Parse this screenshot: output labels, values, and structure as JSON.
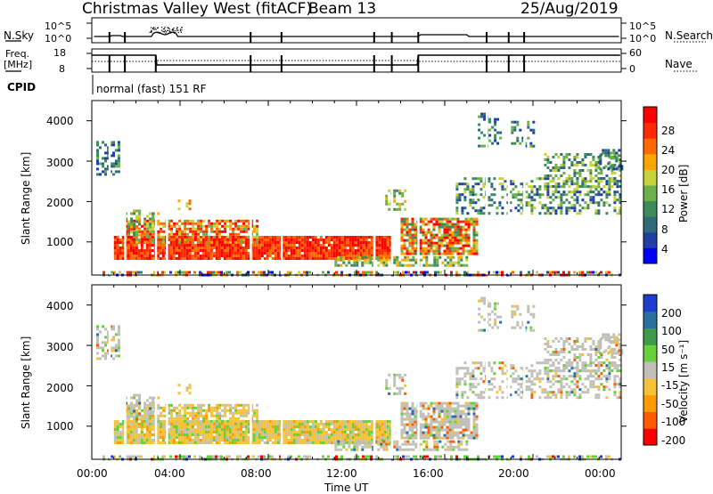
{
  "header": {
    "station": "Christmas Valley West (fitACF)",
    "beam": "Beam 13",
    "date": "25/Aug/2019"
  },
  "noise_panel": {
    "left_label": "N.Sky",
    "right_label": "N.Search",
    "ticks_left": [
      "10^5",
      "10^0"
    ],
    "ticks_right": [
      "10^5",
      "10^0"
    ]
  },
  "freq_panel": {
    "left_label_line1": "Freq.",
    "left_label_line2": "[MHz]",
    "right_label": "Nave",
    "ticks_left": [
      "18",
      "8"
    ],
    "ticks_right": [
      "60",
      "0"
    ]
  },
  "cpid": {
    "label": "CPID",
    "mode": "normal (fast) 151 RF"
  },
  "chart_data": [
    {
      "type": "heatmap",
      "title": "",
      "ylabel": "Slant Range [km]",
      "xlabel": "",
      "x_range_hours": [
        0,
        24
      ],
      "ylim": [
        180,
        4500
      ],
      "y_ticks": [
        "1000",
        "2000",
        "3000",
        "4000"
      ],
      "colorbar": {
        "label": "Power [dB]",
        "ticks": [
          "4",
          "8",
          "12",
          "16",
          "20",
          "24",
          "28"
        ],
        "range": [
          0,
          30
        ],
        "colors": [
          "#0000ff",
          "#1f3fa8",
          "#2f6a78",
          "#3d8a5a",
          "#6bb04a",
          "#c8d23a",
          "#ffa500",
          "#ff6a00",
          "#ff2a00",
          "#ff0000"
        ]
      }
    },
    {
      "type": "heatmap",
      "title": "",
      "ylabel": "Slant Range [km]",
      "xlabel": "Time UT",
      "x_range_hours": [
        0,
        24
      ],
      "ylim": [
        180,
        4500
      ],
      "y_ticks": [
        "1000",
        "2000",
        "3000",
        "4000"
      ],
      "x_ticks": [
        "00:00",
        "04:00",
        "08:00",
        "12:00",
        "16:00",
        "20:00",
        "00:00"
      ],
      "colorbar": {
        "label": "Velocity [m s⁻¹]",
        "ticks": [
          "200",
          "100",
          "50",
          "15",
          "-15",
          "-50",
          "-100",
          "-200"
        ],
        "colors": [
          "#1e3ccf",
          "#2b6ea0",
          "#3f9a4a",
          "#66d13a",
          "#c0c0b8",
          "#f5c23a",
          "#ff9a00",
          "#ff5a00",
          "#ff0000"
        ]
      }
    }
  ]
}
